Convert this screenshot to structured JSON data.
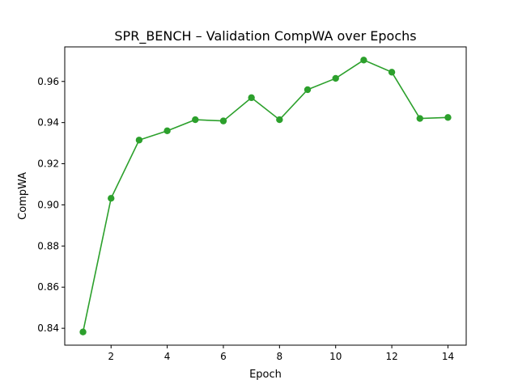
{
  "chart_data": {
    "type": "line",
    "title": "SPR_BENCH – Validation CompWA over Epochs",
    "xlabel": "Epoch",
    "ylabel": "CompWA",
    "xlim": [
      0.35,
      14.65
    ],
    "ylim": [
      0.8318,
      0.9768
    ],
    "xticks": [
      2,
      4,
      6,
      8,
      10,
      12,
      14
    ],
    "yticks": [
      0.84,
      0.86,
      0.88,
      0.9,
      0.92,
      0.94,
      0.96
    ],
    "ytick_labels": [
      "0.84",
      "0.86",
      "0.88",
      "0.90",
      "0.92",
      "0.94",
      "0.96"
    ],
    "grid": false,
    "series": [
      {
        "color": "#2ca02c",
        "marker": "circle",
        "x": [
          1,
          2,
          3,
          4,
          5,
          6,
          7,
          8,
          9,
          10,
          11,
          12,
          13,
          14
        ],
        "y": [
          0.8382,
          0.9032,
          0.9315,
          0.936,
          0.9414,
          0.9408,
          0.9521,
          0.9414,
          0.956,
          0.9615,
          0.9704,
          0.9645,
          0.942,
          0.9425
        ]
      }
    ]
  }
}
